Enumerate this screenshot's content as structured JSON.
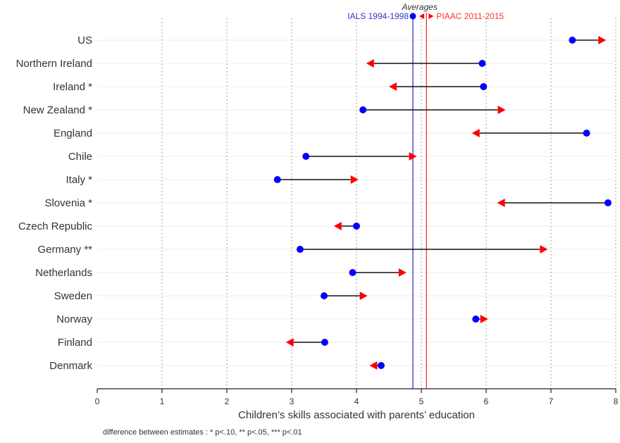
{
  "chart_data": {
    "type": "dumbbell",
    "xlabel": "Children’s skills associated with parents’ education",
    "xlim": [
      0,
      8
    ],
    "x_ticks": [
      0,
      1,
      2,
      3,
      4,
      5,
      6,
      7,
      8
    ],
    "grid": "vertical dotted",
    "categories": [
      "US",
      "Northern Ireland",
      "Ireland *",
      "New Zealand *",
      "England",
      "Chile",
      "Italy *",
      "Slovenia *",
      "Czech Republic",
      "Germany **",
      "Netherlands",
      "Sweden",
      "Norway",
      "Finland",
      "Denmark"
    ],
    "series": [
      {
        "name": "IALS 1994-1998",
        "marker": "circle",
        "color": "#0000ff",
        "values": [
          7.33,
          5.94,
          5.96,
          4.1,
          7.55,
          3.22,
          2.78,
          7.88,
          4.0,
          3.13,
          3.94,
          3.5,
          5.84,
          3.51,
          4.38
        ]
      },
      {
        "name": "PIAAC 2011-2015",
        "marker": "triangle",
        "color": "#ff0000",
        "values": [
          7.85,
          4.15,
          4.5,
          6.3,
          5.78,
          4.93,
          4.03,
          6.17,
          3.65,
          6.95,
          4.77,
          4.17,
          6.03,
          2.91,
          4.2
        ]
      }
    ],
    "averages": {
      "title": "Averages",
      "ials": {
        "label": "IALS 1994-1998",
        "value": 4.87,
        "color": "#3333cc"
      },
      "piaac": {
        "label": "PIAAC 2011-2015",
        "value": 5.08,
        "color": "#ff3333"
      }
    },
    "footnote": "difference between estimates : * p<.10, ** p<.05, *** p<.01"
  }
}
